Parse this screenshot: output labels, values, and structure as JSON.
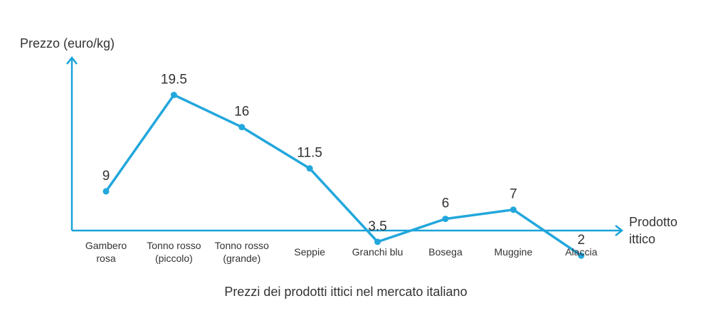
{
  "chart_data": {
    "type": "line",
    "categories": [
      [
        "Gambero",
        "rosa"
      ],
      [
        "Tonno rosso",
        "(piccolo)"
      ],
      [
        "Tonno rosso",
        "(grande)"
      ],
      [
        "Seppie"
      ],
      [
        "Granchi blu"
      ],
      [
        "Bosega"
      ],
      [
        "Muggine"
      ],
      [
        "Alaccia"
      ]
    ],
    "values": [
      9,
      19.5,
      16,
      11.5,
      3.5,
      6,
      7,
      2
    ],
    "value_labels": [
      "9",
      "19.5",
      "16",
      "11.5",
      "3.5",
      "6",
      "7",
      "2"
    ],
    "ylabel": "Prezzo (euro/kg)",
    "xlabel": [
      "Prodotto",
      "ittico"
    ],
    "caption": "Prezzi dei prodotti ittici nel mercato italiano",
    "ylim": [
      0,
      21
    ],
    "grid": false,
    "color": "#22a7dc"
  }
}
